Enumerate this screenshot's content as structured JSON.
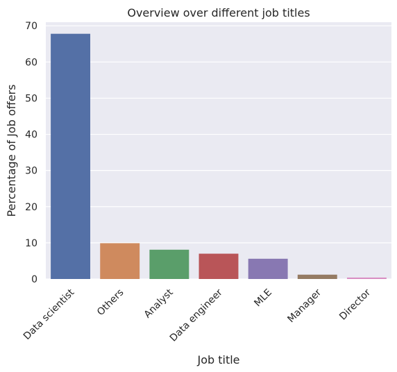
{
  "chart_data": {
    "type": "bar",
    "title": "Overview over different job titles",
    "xlabel": "Job title",
    "ylabel": "Percentage of Job offers",
    "categories": [
      "Data scientist",
      "Others",
      "Analyst",
      "Data engineer",
      "MLE",
      "Manager",
      "Director"
    ],
    "values": [
      67.8,
      9.9,
      8.1,
      7.0,
      5.6,
      1.2,
      0.4
    ],
    "colors": [
      "#5470a6",
      "#cf8a5e",
      "#5a9e6a",
      "#b95558",
      "#8878b2",
      "#957b63",
      "#d88ec3"
    ],
    "ylim": [
      0,
      71
    ],
    "yticks": [
      0,
      10,
      20,
      30,
      40,
      50,
      60,
      70
    ],
    "grid": true,
    "background": "#eaeaf2"
  }
}
